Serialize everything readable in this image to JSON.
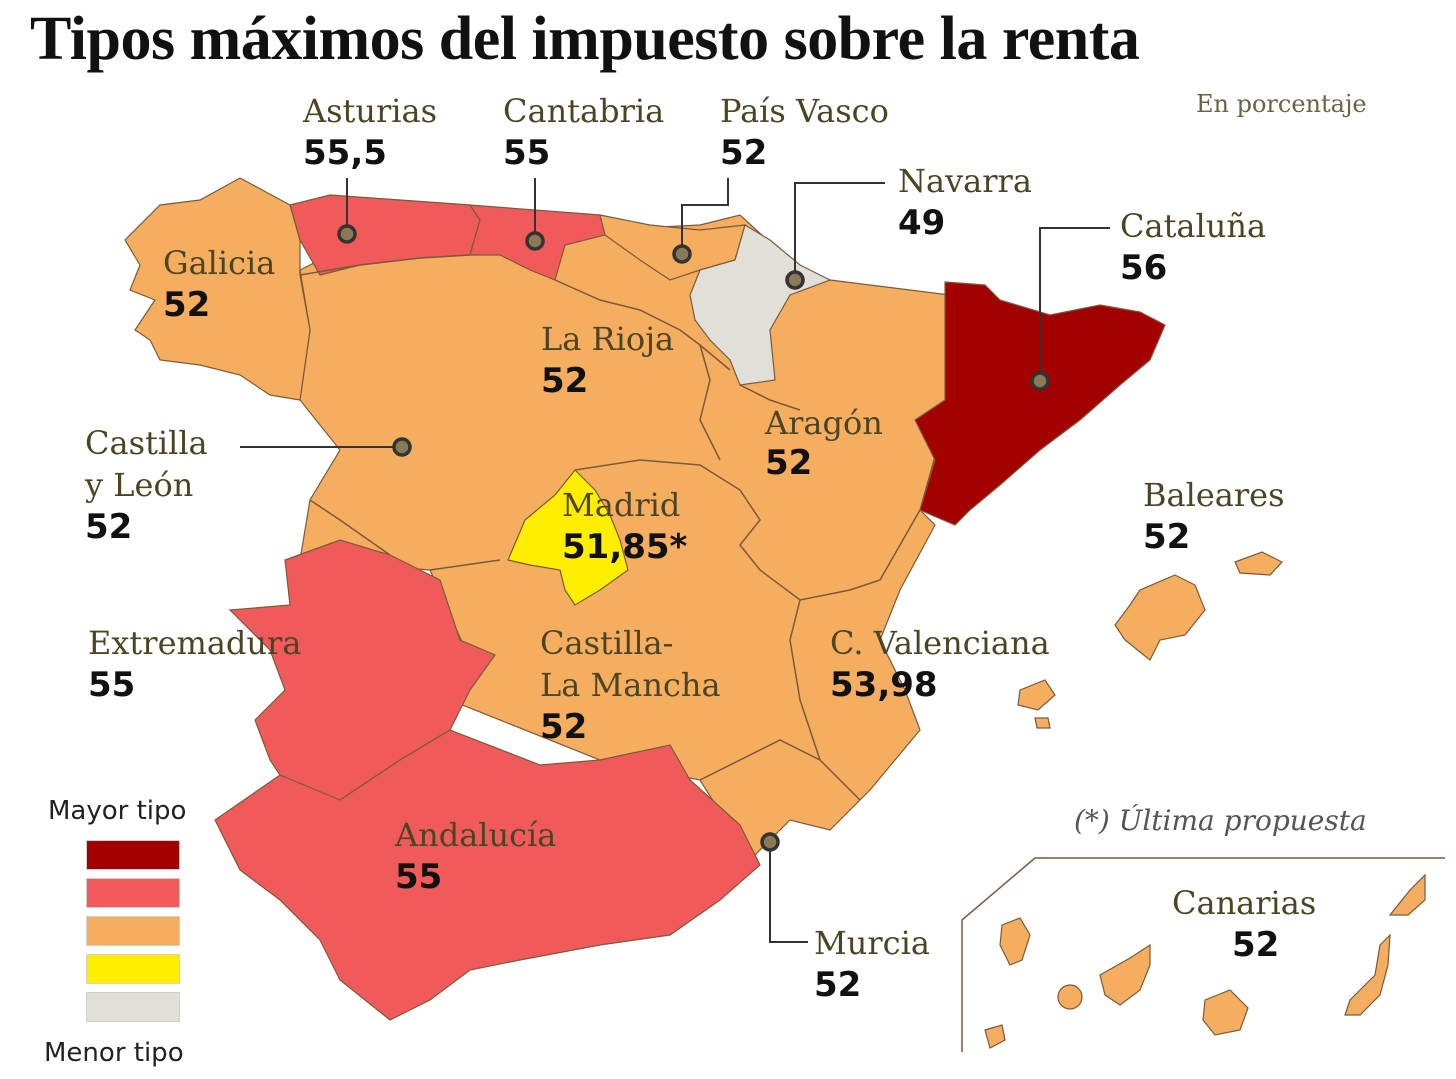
{
  "title": "Tipos máximos del impuesto sobre la renta",
  "unit_note": "En porcentaje",
  "footnote": "(*) Última propuesta",
  "colors": {
    "highest": "#a30000",
    "high": "#f05a5a",
    "mid": "#f5ad5f",
    "low": "#ffee00",
    "lowest": "#e0dfd8",
    "border": "#7a5a3a",
    "leader": "#333333"
  },
  "legend": {
    "top_label": "Mayor tipo",
    "bottom_label": "Menor tipo",
    "swatches": [
      "highest",
      "high",
      "mid",
      "low",
      "lowest"
    ]
  },
  "regions": {
    "asturias": {
      "name": "Asturias",
      "value": "55,5",
      "color": "high"
    },
    "cantabria": {
      "name": "Cantabria",
      "value": "55",
      "color": "high"
    },
    "pais_vasco": {
      "name": "País Vasco",
      "value": "52",
      "color": "mid"
    },
    "navarra": {
      "name": "Navarra",
      "value": "49",
      "color": "lowest"
    },
    "cataluna": {
      "name": "Cataluña",
      "value": "56",
      "color": "highest"
    },
    "galicia": {
      "name": "Galicia",
      "value": "52",
      "color": "mid"
    },
    "la_rioja": {
      "name": "La Rioja",
      "value": "52",
      "color": "mid"
    },
    "castilla_leon": {
      "name_line1": "Castilla",
      "name_line2": "y León",
      "value": "52",
      "color": "mid"
    },
    "aragon": {
      "name": "Aragón",
      "value": "52",
      "color": "mid"
    },
    "madrid": {
      "name": "Madrid",
      "value": "51,85*",
      "color": "low"
    },
    "baleares": {
      "name": "Baleares",
      "value": "52",
      "color": "mid"
    },
    "extremadura": {
      "name": "Extremadura",
      "value": "55",
      "color": "high"
    },
    "castilla_la_mancha": {
      "name_line1": "Castilla-",
      "name_line2": "La Mancha",
      "value": "52",
      "color": "mid"
    },
    "valenciana": {
      "name": "C. Valenciana",
      "value": "53,98",
      "color": "mid"
    },
    "andalucia": {
      "name": "Andalucía",
      "value": "55",
      "color": "high"
    },
    "murcia": {
      "name": "Murcia",
      "value": "52",
      "color": "mid"
    },
    "canarias": {
      "name": "Canarias",
      "value": "52",
      "color": "mid"
    }
  }
}
